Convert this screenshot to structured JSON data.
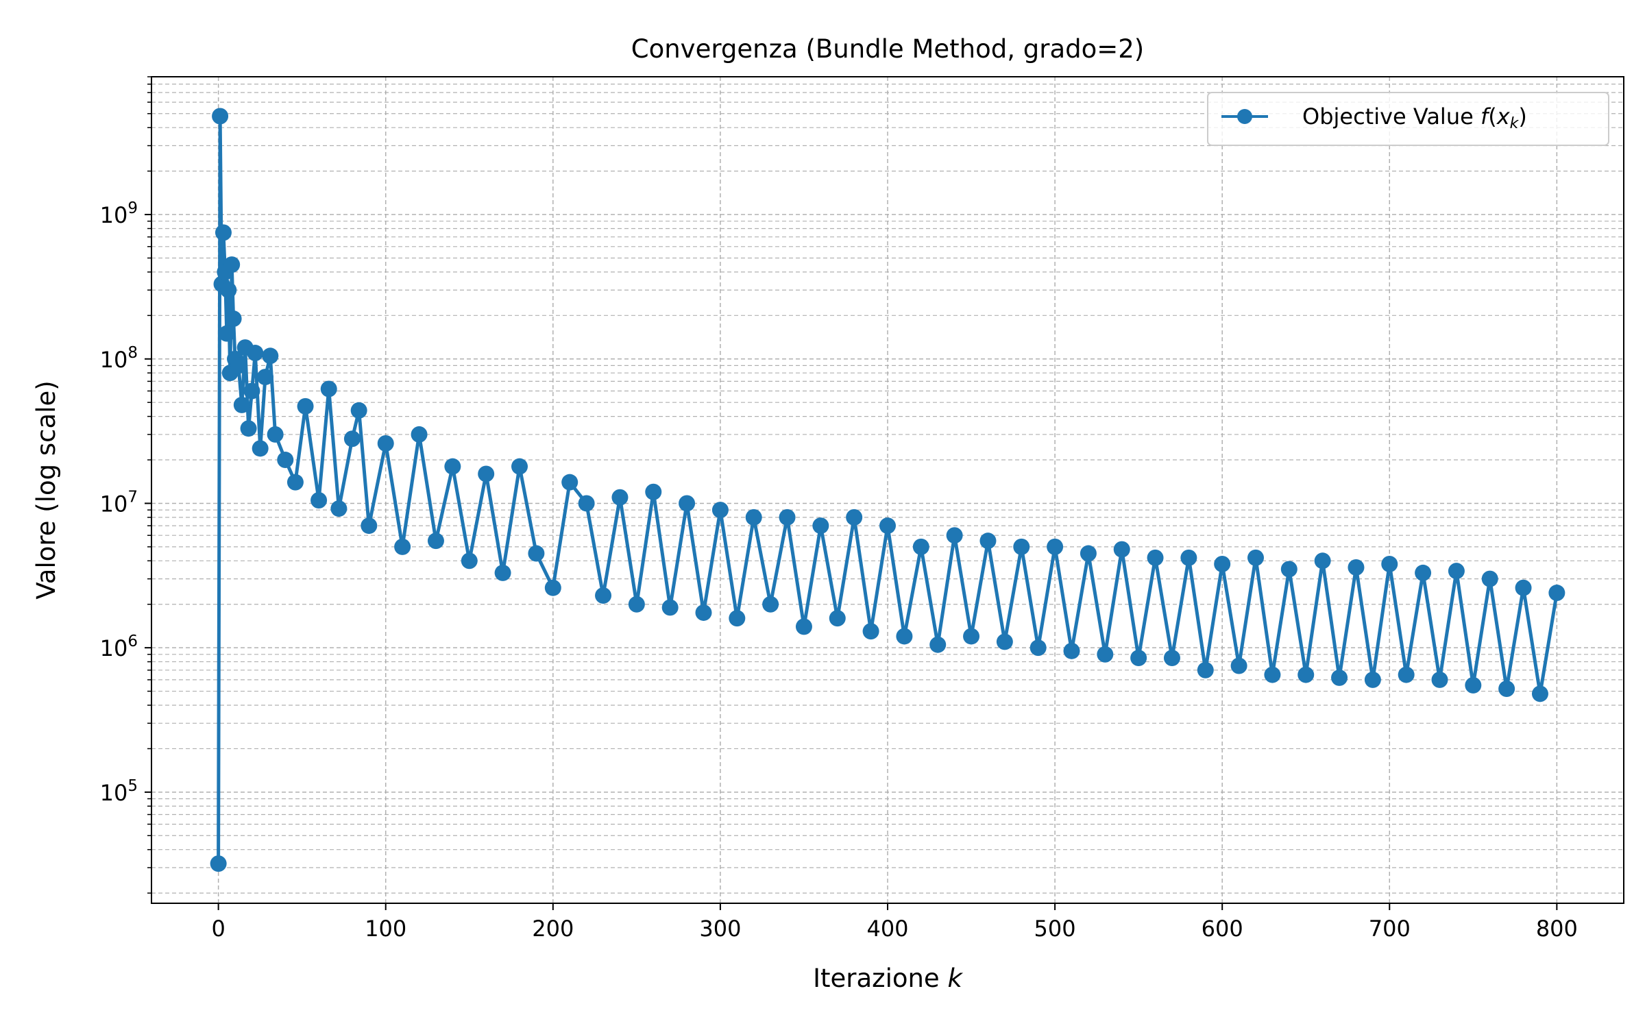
{
  "colors": {
    "series": "#1f77b4",
    "grid": "#b0b0b0",
    "axes": "#000000",
    "background": "#ffffff"
  },
  "chart_data": {
    "type": "line",
    "title": "Convergenza (Bundle Method, grado=2)",
    "xlabel": "Iterazione ",
    "xlabel_var": "k",
    "ylabel": "Valore (log scale)",
    "yscale": "log",
    "xlim": [
      -40,
      840
    ],
    "ylim": [
      17000,
      9000000000
    ],
    "xticks": [
      0,
      100,
      200,
      300,
      400,
      500,
      600,
      700,
      800
    ],
    "xtick_labels": [
      "0",
      "100",
      "200",
      "300",
      "400",
      "500",
      "600",
      "700",
      "800"
    ],
    "yticks": [
      100000,
      1000000,
      10000000,
      100000000,
      1000000000
    ],
    "ytick_labels": [
      {
        "base": "10",
        "exp": "5"
      },
      {
        "base": "10",
        "exp": "6"
      },
      {
        "base": "10",
        "exp": "7"
      },
      {
        "base": "10",
        "exp": "8"
      },
      {
        "base": "10",
        "exp": "9"
      }
    ],
    "grid": true,
    "grid_minor": true,
    "grid_style": "dashed",
    "legend_position": "top-right",
    "legend": {
      "label_text": "Objective Value ",
      "label_math_f": "f",
      "label_math_x": "x",
      "label_math_sub": "k"
    },
    "series": [
      {
        "name": "Objective Value f(x_k)",
        "marker": "circle",
        "x": [
          0,
          1,
          2,
          3,
          4,
          5,
          6,
          7,
          8,
          9,
          10,
          12,
          14,
          16,
          18,
          20,
          22,
          25,
          28,
          31,
          34,
          40,
          46,
          52,
          60,
          66,
          72,
          80,
          84,
          90,
          100,
          110,
          120,
          130,
          140,
          150,
          160,
          170,
          180,
          190,
          200,
          210,
          220,
          230,
          240,
          250,
          260,
          270,
          280,
          290,
          300,
          310,
          320,
          330,
          340,
          350,
          360,
          370,
          380,
          390,
          400,
          410,
          420,
          430,
          440,
          450,
          460,
          470,
          480,
          490,
          500,
          510,
          520,
          530,
          540,
          550,
          560,
          570,
          580,
          590,
          600,
          610,
          620,
          630,
          640,
          650,
          660,
          670,
          680,
          690,
          700,
          710,
          720,
          730,
          740,
          750,
          760,
          770,
          780,
          790,
          800
        ],
        "y": [
          32000,
          4800000000,
          330000000,
          750000000,
          400000000,
          150000000,
          300000000,
          80000000,
          450000000,
          190000000,
          100000000,
          90000000,
          48000000,
          120000000,
          33000000,
          60000000,
          110000000,
          24000000,
          75000000,
          105000000,
          30000000,
          20000000,
          14000000,
          47000000,
          10500000,
          62000000,
          9200000,
          28000000,
          44000000,
          7000000,
          26000000,
          5000000,
          30000000,
          5500000,
          18000000,
          4000000,
          16000000,
          3300000,
          18000000,
          4500000,
          2600000,
          14000000,
          10000000,
          2300000,
          11000000,
          2000000,
          12000000,
          1900000,
          10000000,
          1750000,
          9000000,
          1600000,
          8000000,
          2000000,
          8000000,
          1400000,
          7000000,
          1600000,
          8000000,
          1300000,
          7000000,
          1200000,
          5000000,
          1050000,
          6000000,
          1200000,
          5500000,
          1100000,
          5000000,
          1000000,
          5000000,
          950000,
          4500000,
          900000,
          4800000,
          850000,
          4200000,
          850000,
          4200000,
          700000,
          3800000,
          750000,
          4200000,
          650000,
          3500000,
          650000,
          4000000,
          620000,
          3600000,
          600000,
          3800000,
          650000,
          3300000,
          600000,
          3400000,
          550000,
          3000000,
          520000,
          2600000,
          480000,
          2400000
        ]
      }
    ]
  }
}
